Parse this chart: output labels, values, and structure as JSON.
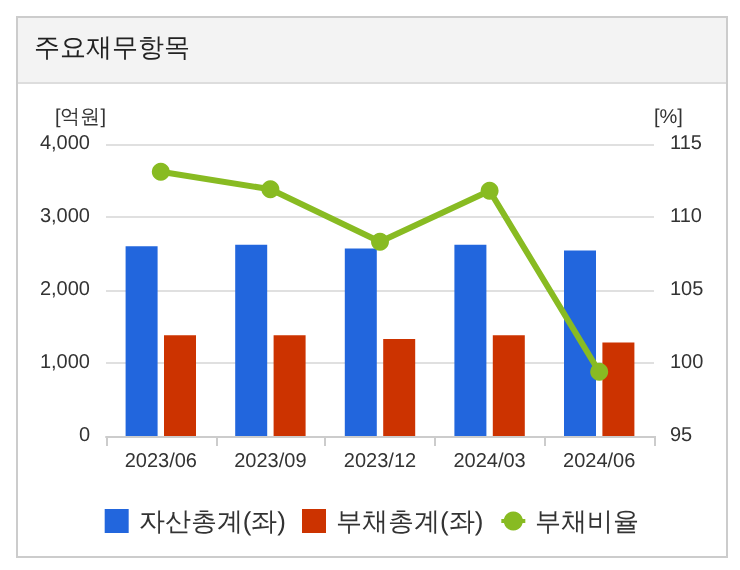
{
  "chart_data": {
    "type": "bar",
    "title": "주요재무항목",
    "ylabel": "[억원]",
    "y2label": "[%]",
    "categories": [
      "2023/06",
      "2023/09",
      "2023/12",
      "2024/03",
      "2024/06"
    ],
    "series": [
      {
        "name": "자산총계(좌)",
        "color": "#2266dd",
        "values": [
          2600,
          2620,
          2570,
          2620,
          2540
        ]
      },
      {
        "name": "부채총계(좌)",
        "color": "#cc3300",
        "values": [
          1380,
          1380,
          1330,
          1380,
          1280
        ]
      },
      {
        "name": "부채비율",
        "type": "line",
        "axis": "y2",
        "color": "#88bb22",
        "values": [
          113.1,
          111.9,
          108.3,
          111.8,
          99.4
        ]
      }
    ],
    "ylim": [
      0,
      4000
    ],
    "yticks": [
      0,
      {
        "value": 1000,
        "label": "1,000"
      },
      {
        "value": 2000,
        "label": "2,000"
      },
      {
        "value": 3000,
        "label": "3,000"
      },
      {
        "value": 4000,
        "label": "4,000"
      }
    ],
    "y2lim": [
      95,
      115
    ],
    "y2ticks": [
      95,
      100,
      105,
      110,
      115
    ],
    "grid": "y",
    "legend": "bottom",
    "marker": "circle"
  }
}
